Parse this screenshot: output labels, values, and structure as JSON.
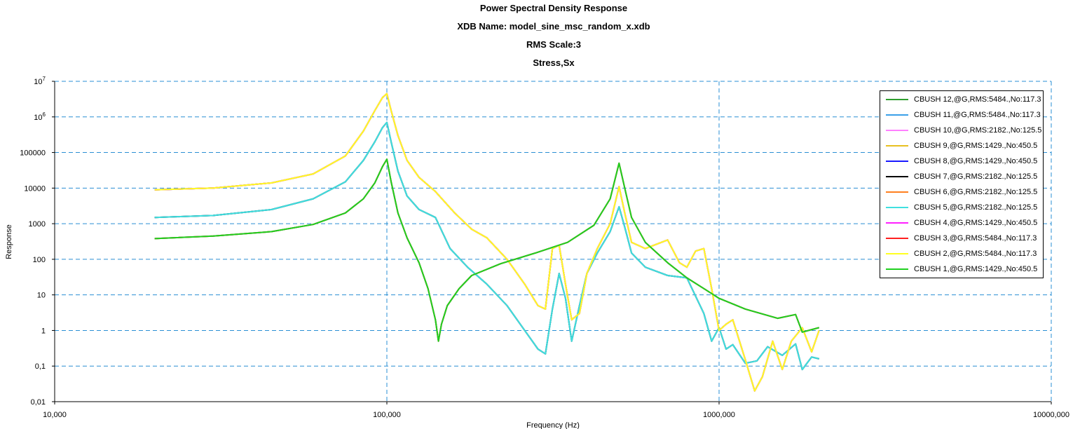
{
  "chart_data": {
    "type": "line",
    "title_lines": [
      "Power Spectral Density Response",
      "XDB Name: model_sine_msc_random_x.xdb",
      "RMS Scale:3",
      "Stress,Sx"
    ],
    "xlabel": "Frequency (Hz)",
    "ylabel": "Response",
    "xscale": "log",
    "yscale": "log",
    "xlim": [
      10000,
      10000000
    ],
    "ylim": [
      0.01,
      10000000
    ],
    "x_ticks": [
      10000,
      100000,
      1000000,
      10000000
    ],
    "x_tick_labels": [
      "10,000",
      "100,000",
      "1000,000",
      "10000,000"
    ],
    "y_ticks": [
      0.01,
      0.1,
      1,
      10,
      100,
      1000,
      10000,
      100000,
      1000000,
      10000000
    ],
    "y_tick_labels": [
      "0,01",
      "0,1",
      "1",
      "10",
      "100",
      "1000",
      "10000",
      "100000",
      "10^6",
      "10^7"
    ],
    "grid": true,
    "legend_position": "top-right",
    "series": [
      {
        "name": "CBUSH 12,@G,RMS:5484.,No:117.3",
        "color": "#2e9e2e",
        "shape": "A"
      },
      {
        "name": "CBUSH 11,@G,RMS:5484.,No:117.3",
        "color": "#3aa0e8",
        "shape": "B"
      },
      {
        "name": "CBUSH 10,@G,RMS:2182.,No:125.5",
        "color": "#ff80ff",
        "shape": "C"
      },
      {
        "name": "CBUSH 9,@G,RMS:1429.,No:450.5",
        "color": "#e8c020",
        "shape": "C"
      },
      {
        "name": "CBUSH 8,@G,RMS:1429.,No:450.5",
        "color": "#1a1aff",
        "shape": "C"
      },
      {
        "name": "CBUSH 7,@G,RMS:2182.,No:125.5",
        "color": "#000000",
        "shape": "B"
      },
      {
        "name": "CBUSH 6,@G,RMS:2182.,No:125.5",
        "color": "#ff8020",
        "shape": "C"
      },
      {
        "name": "CBUSH 5,@G,RMS:2182.,No:125.5",
        "color": "#40e0e0",
        "shape": "B"
      },
      {
        "name": "CBUSH 4,@G,RMS:1429.,No:450.5",
        "color": "#ff20ff",
        "shape": "C"
      },
      {
        "name": "CBUSH 3,@G,RMS:5484.,No:117.3",
        "color": "#ff2020",
        "shape": "A"
      },
      {
        "name": "CBUSH 2,@G,RMS:5484.,No:117.3",
        "color": "#ffff20",
        "shape": "C"
      },
      {
        "name": "CBUSH 1,@G,RMS:1429.,No:450.5",
        "color": "#20d020",
        "shape": "A"
      }
    ],
    "shapes": {
      "A": {
        "x": [
          20000,
          30000,
          45000,
          60000,
          75000,
          85000,
          92000,
          97000,
          100000,
          103000,
          108000,
          115000,
          125000,
          133000,
          140000,
          143000,
          146000,
          152000,
          165000,
          180000,
          220000,
          280000,
          350000,
          420000,
          470000,
          500000,
          520000,
          545000,
          600000,
          700000,
          800000,
          900000,
          1000000,
          1200000,
          1500000,
          1700000,
          1780000,
          2000000
        ],
        "y": [
          380,
          450,
          600,
          950,
          2000,
          5000,
          14000,
          40000,
          65000,
          15000,
          2000,
          400,
          80,
          15,
          2,
          0.5,
          1.5,
          5,
          15,
          35,
          75,
          150,
          300,
          900,
          5000,
          50000,
          10000,
          1500,
          300,
          80,
          30,
          15,
          8,
          4,
          2.2,
          2.8,
          0.9,
          1.2
        ]
      },
      "B": {
        "x": [
          20000,
          30000,
          45000,
          60000,
          75000,
          85000,
          92000,
          97000,
          100000,
          103000,
          108000,
          115000,
          125000,
          140000,
          155000,
          175000,
          200000,
          230000,
          260000,
          285000,
          300000,
          315000,
          330000,
          345000,
          360000,
          380000,
          400000,
          430000,
          470000,
          500000,
          520000,
          545000,
          600000,
          700000,
          800000,
          900000,
          950000,
          1000000,
          1050000,
          1100000,
          1200000,
          1300000,
          1400000,
          1550000,
          1700000,
          1780000,
          1900000,
          2000000
        ],
        "y": [
          1500,
          1700,
          2500,
          5000,
          15000,
          60000,
          200000,
          500000,
          700000,
          200000,
          30000,
          6000,
          2500,
          1500,
          200,
          60,
          20,
          5,
          1,
          0.3,
          0.22,
          4,
          40,
          8,
          0.5,
          5,
          40,
          150,
          600,
          3000,
          800,
          150,
          60,
          35,
          30,
          3,
          0.5,
          1.2,
          0.3,
          0.4,
          0.12,
          0.14,
          0.35,
          0.2,
          0.42,
          0.08,
          0.18,
          0.16
        ]
      },
      "C": {
        "x": [
          20000,
          30000,
          45000,
          60000,
          75000,
          85000,
          92000,
          97000,
          100000,
          103000,
          108000,
          115000,
          125000,
          140000,
          160000,
          180000,
          200000,
          230000,
          260000,
          285000,
          300000,
          315000,
          330000,
          345000,
          360000,
          380000,
          400000,
          430000,
          470000,
          500000,
          520000,
          545000,
          600000,
          700000,
          760000,
          800000,
          850000,
          900000,
          950000,
          1000000,
          1050000,
          1100000,
          1200000,
          1280000,
          1350000,
          1450000,
          1550000,
          1650000,
          1780000,
          1900000,
          2000000
        ],
        "y": [
          9000,
          10000,
          14000,
          25000,
          80000,
          400000,
          1500000,
          3500000,
          4500000,
          1500000,
          300000,
          60000,
          20000,
          8000,
          2000,
          700,
          400,
          100,
          20,
          5,
          4,
          200,
          250,
          20,
          2,
          3,
          40,
          200,
          1000,
          11000,
          2000,
          300,
          200,
          350,
          80,
          60,
          170,
          200,
          15,
          1,
          1.5,
          2,
          0.15,
          0.02,
          0.05,
          0.5,
          0.08,
          0.5,
          1.2,
          0.25,
          1.0
        ]
      }
    }
  }
}
